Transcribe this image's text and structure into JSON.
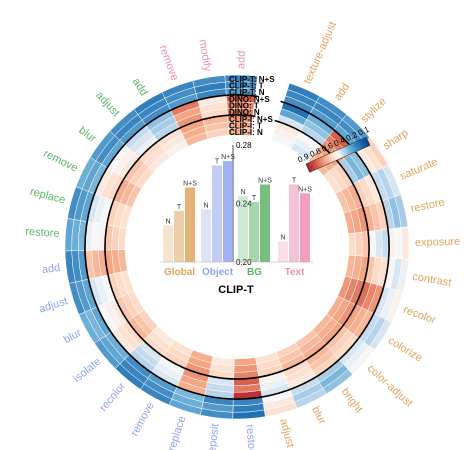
{
  "chart_data": {
    "type": "heatmap",
    "layout": "circular",
    "subtitle": "CLIP-T",
    "colors": {
      "global": "#e0a45f",
      "object": "#8fa4ec",
      "bg": "#5fb36a",
      "text": "#ee8fb4",
      "colormap_high": "#0a4b97",
      "colormap_low": "#b2182b"
    },
    "groups": [
      {
        "name": "Global",
        "color": "global",
        "items": [
          "texture-adjust",
          "add",
          "stylize",
          "sharp",
          "saturate",
          "restore",
          "exposure",
          "contrast",
          "recolor",
          "colorize",
          "color-adjust",
          "bright",
          "blur",
          "adjust"
        ]
      },
      {
        "name": "Object",
        "color": "object",
        "items": [
          "restore",
          "reposit",
          "replace",
          "remove",
          "recolor",
          "isolate",
          "blur",
          "adjust",
          "add"
        ]
      },
      {
        "name": "BG",
        "color": "bg",
        "items": [
          "restore",
          "replace",
          "remove",
          "blur",
          "adjust",
          "add"
        ]
      },
      {
        "name": "Text",
        "color": "text",
        "items": [
          "remove",
          "modify",
          "add"
        ]
      }
    ],
    "ring_labels": [
      "CLIP-T: N+S",
      "CLIP-T: T",
      "CLIP-T: N",
      "DINO: N+S",
      "DINO: T",
      "DINO: N",
      "CLIP-I: N+S",
      "CLIP-I: T",
      "CLIP-I: N"
    ],
    "colorbar": {
      "ticks": [
        "0.9",
        "0.8",
        "0.6",
        "0.4",
        "0.2",
        "0.1"
      ]
    },
    "bar_chart": {
      "title": "CLIP-T",
      "ylim": [
        0.2,
        0.28
      ],
      "yticks": [
        "0.28",
        "0.24",
        "0.20"
      ],
      "bars": [
        {
          "group": "Global",
          "series": [
            "N",
            "T",
            "N+S"
          ],
          "values": [
            0.225,
            0.235,
            0.251
          ]
        },
        {
          "group": "Object",
          "series": [
            "N",
            "T",
            "N+S"
          ],
          "values": [
            0.236,
            0.266,
            0.269
          ]
        },
        {
          "group": "BG",
          "series": [
            "N",
            "T",
            "N+S"
          ],
          "values": [
            0.245,
            0.241,
            0.253
          ]
        },
        {
          "group": "Text",
          "series": [
            "N",
            "T",
            "N+S"
          ],
          "values": [
            0.214,
            0.253,
            0.247
          ]
        }
      ]
    },
    "values": [
      [
        0.18,
        0.22,
        0.25,
        0.62,
        0.45,
        0.38,
        0.55,
        0.48,
        0.52,
        0.45,
        0.5,
        0.35,
        0.4,
        0.58,
        0.15,
        0.22,
        0.28,
        0.2,
        0.18,
        0.25,
        0.3,
        0.22,
        0.2,
        0.28,
        0.22,
        0.3,
        0.25,
        0.22,
        0.18,
        0.2,
        0.22,
        0.2
      ],
      [
        0.2,
        0.2,
        0.22,
        0.58,
        0.4,
        0.35,
        0.5,
        0.45,
        0.48,
        0.4,
        0.48,
        0.32,
        0.38,
        0.55,
        0.18,
        0.25,
        0.3,
        0.22,
        0.2,
        0.28,
        0.32,
        0.25,
        0.22,
        0.3,
        0.25,
        0.28,
        0.22,
        0.2,
        0.2,
        0.22,
        0.18,
        0.22
      ],
      [
        0.22,
        0.25,
        0.28,
        0.55,
        0.42,
        0.4,
        0.52,
        0.5,
        0.45,
        0.42,
        0.45,
        0.38,
        0.42,
        0.5,
        0.2,
        0.2,
        0.32,
        0.25,
        0.22,
        0.3,
        0.28,
        0.28,
        0.25,
        0.32,
        0.28,
        0.32,
        0.28,
        0.25,
        0.22,
        0.25,
        0.2,
        0.25
      ],
      [
        0.15,
        0.3,
        0.85,
        0.35,
        0.55,
        0.62,
        0.42,
        0.58,
        0.75,
        0.68,
        0.6,
        0.62,
        0.55,
        0.45,
        0.95,
        0.4,
        0.7,
        0.45,
        0.4,
        0.55,
        0.5,
        0.45,
        0.65,
        0.48,
        0.45,
        0.55,
        0.5,
        0.42,
        0.35,
        0.8,
        0.55,
        0.85
      ],
      [
        0.28,
        0.35,
        0.8,
        0.32,
        0.6,
        0.65,
        0.45,
        0.6,
        0.78,
        0.7,
        0.62,
        0.65,
        0.58,
        0.48,
        0.8,
        0.42,
        0.72,
        0.48,
        0.42,
        0.58,
        0.52,
        0.48,
        0.68,
        0.5,
        0.48,
        0.58,
        0.52,
        0.45,
        0.38,
        0.72,
        0.58,
        0.78
      ],
      [
        0.45,
        0.4,
        0.75,
        0.38,
        0.62,
        0.7,
        0.5,
        0.65,
        0.82,
        0.72,
        0.65,
        0.68,
        0.6,
        0.52,
        0.85,
        0.45,
        0.75,
        0.5,
        0.45,
        0.6,
        0.55,
        0.5,
        0.7,
        0.52,
        0.5,
        0.6,
        0.55,
        0.48,
        0.4,
        0.75,
        0.6,
        0.8
      ],
      [
        0.55,
        0.5,
        0.72,
        0.62,
        0.7,
        0.75,
        0.65,
        0.72,
        0.8,
        0.75,
        0.72,
        0.7,
        0.68,
        0.62,
        0.78,
        0.6,
        0.75,
        0.62,
        0.6,
        0.68,
        0.65,
        0.62,
        0.72,
        0.65,
        0.62,
        0.7,
        0.65,
        0.6,
        0.58,
        0.72,
        0.68,
        0.75
      ],
      [
        0.52,
        0.48,
        0.7,
        0.6,
        0.68,
        0.72,
        0.62,
        0.7,
        0.78,
        0.72,
        0.7,
        0.68,
        0.65,
        0.6,
        0.75,
        0.58,
        0.72,
        0.6,
        0.58,
        0.65,
        0.62,
        0.6,
        0.7,
        0.62,
        0.6,
        0.68,
        0.62,
        0.58,
        0.55,
        0.7,
        0.65,
        0.72
      ],
      [
        0.5,
        0.45,
        0.68,
        0.58,
        0.65,
        0.7,
        0.6,
        0.68,
        0.75,
        0.7,
        0.68,
        0.65,
        0.62,
        0.58,
        0.72,
        0.55,
        0.7,
        0.58,
        0.55,
        0.62,
        0.6,
        0.58,
        0.68,
        0.6,
        0.58,
        0.65,
        0.6,
        0.55,
        0.52,
        0.68,
        0.62,
        0.7
      ]
    ]
  }
}
